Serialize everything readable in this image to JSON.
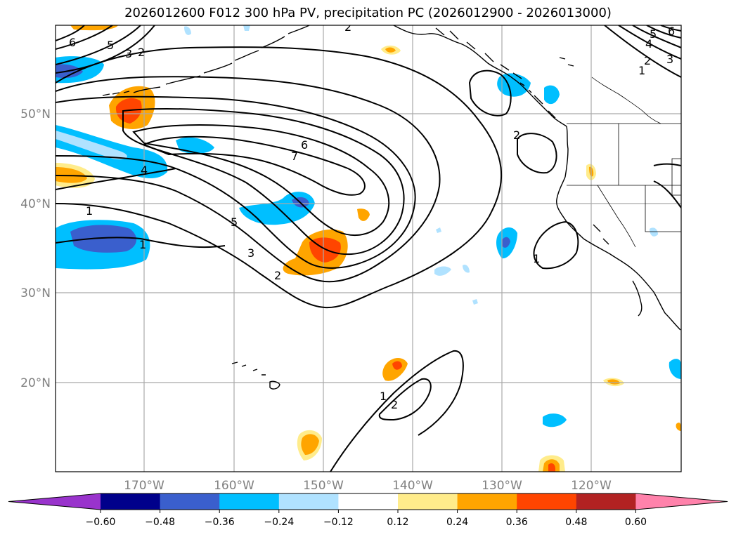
{
  "title": "2026012600 F012 300 hPa PV, precipitation PC (2026012900 - 2026013000)",
  "lat_labels": [
    "50°N",
    "40°N",
    "30°N",
    "20°N"
  ],
  "lon_labels": [
    "170°W",
    "160°W",
    "150°W",
    "140°W",
    "130°W",
    "120°W"
  ],
  "contour_labels": [
    "6",
    "5",
    "3",
    "2",
    "2",
    "6",
    "7",
    "4",
    "1",
    "1",
    "5",
    "3",
    "2",
    "2",
    "1",
    "1",
    "2",
    "5",
    "6",
    "4",
    "2",
    "3",
    "1"
  ],
  "colorbar": {
    "ticks": [
      "−0.60",
      "−0.48",
      "−0.36",
      "−0.24",
      "−0.12",
      "0.12",
      "0.24",
      "0.36",
      "0.48",
      "0.60"
    ],
    "colors": [
      "#9933cc",
      "#00008b",
      "#3a5fcd",
      "#00bfff",
      "#b0e2ff",
      "#ffffff",
      "#ffec8b",
      "#ffa500",
      "#ff4500",
      "#b22222",
      "#ff82ab"
    ]
  }
}
